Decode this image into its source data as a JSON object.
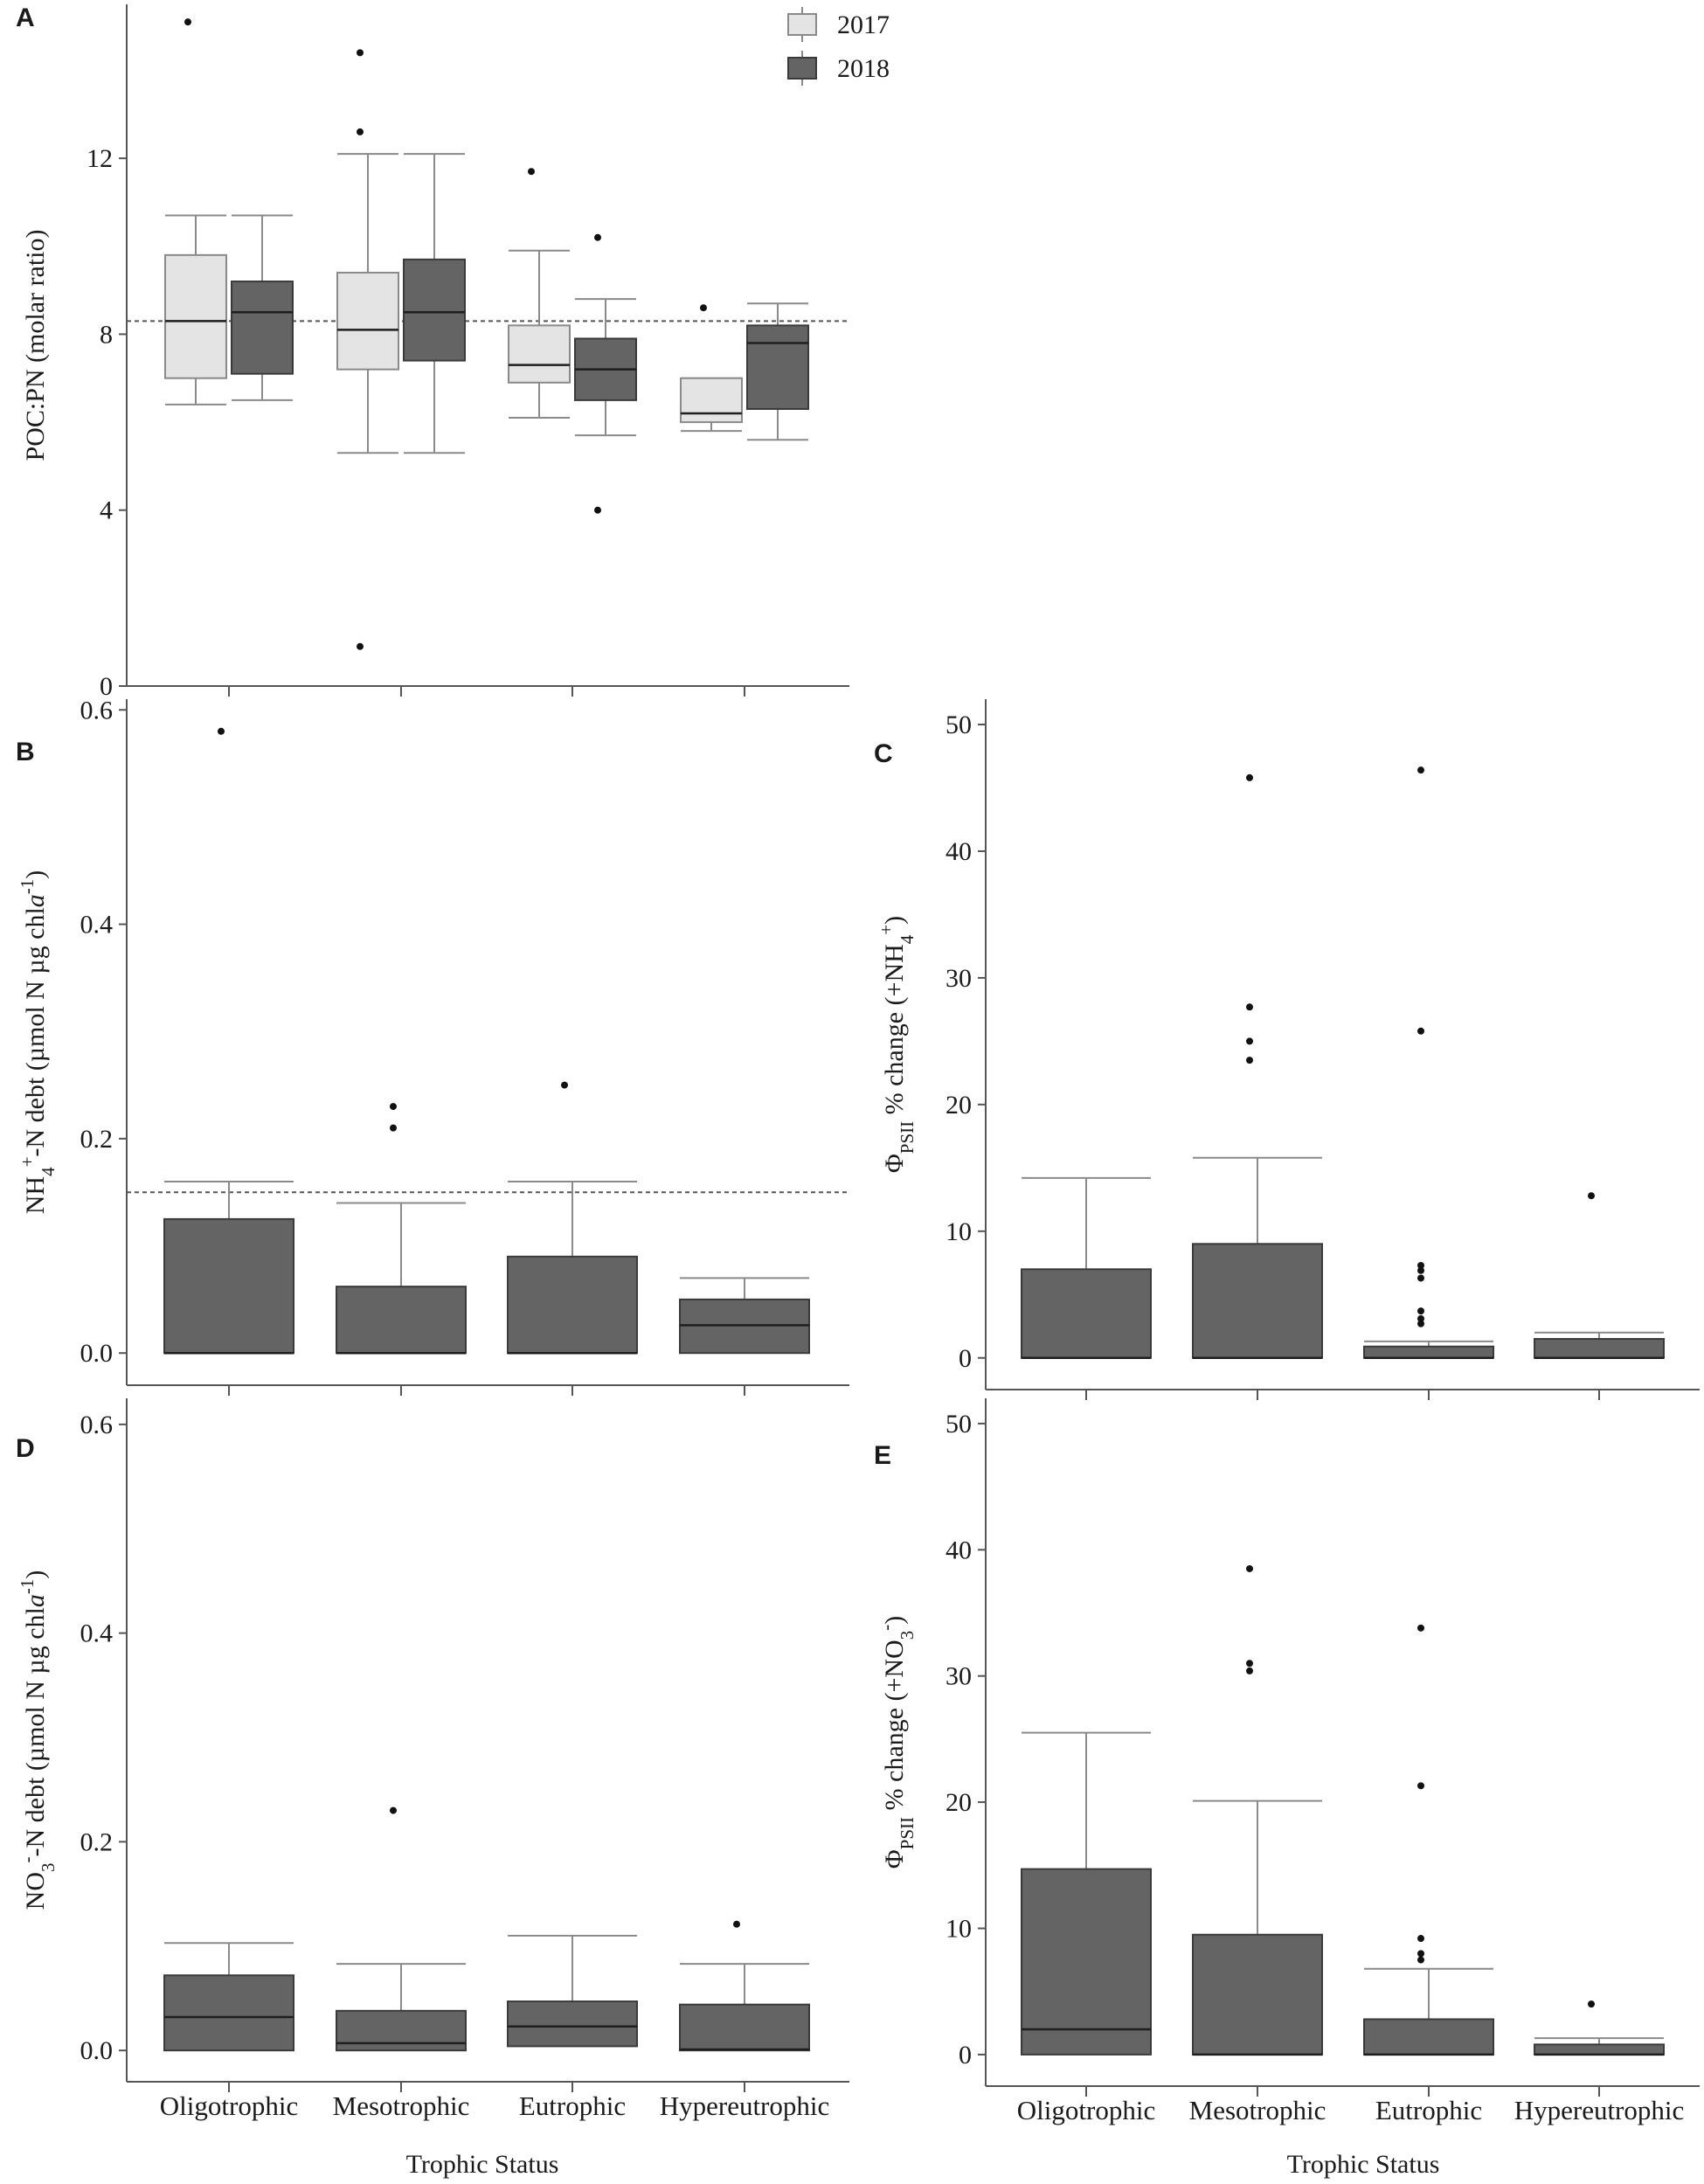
{
  "figure": {
    "shared_xlabel": "Trophic  Status",
    "categories": [
      "Oligotrophic",
      "Mesotrophic",
      "Eutrophic",
      "Hypereutrophic"
    ]
  },
  "colors": {
    "fill_2017": "#e4e4e4",
    "fill_2018": "#646464",
    "outline_2017": "#8a8a8a",
    "outline_2018": "#3a3a3a",
    "whisker": "#8a8a8a",
    "axis": "#555555",
    "reference_line": "#555555"
  },
  "chart_data": [
    {
      "panel": "A",
      "type": "box",
      "ylabel": "POC:PN (molar  ratio)",
      "ylim": [
        0,
        15.5
      ],
      "yticks": [
        0,
        4,
        8,
        12
      ],
      "reference_line": 8.3,
      "legend": {
        "placement": "top-right",
        "entries": [
          "2017",
          "2018"
        ]
      },
      "categories": [
        "Oligotrophic",
        "Mesotrophic",
        "Eutrophic",
        "Hypereutrophic"
      ],
      "show_category_labels": false,
      "series": [
        {
          "name": "2017",
          "boxes": [
            {
              "whisker_low": 6.4,
              "q1": 7.0,
              "median": 8.3,
              "q3": 9.8,
              "whisker_high": 10.7,
              "outliers": [
                15.1
              ]
            },
            {
              "whisker_low": 5.3,
              "q1": 7.2,
              "median": 8.1,
              "q3": 9.4,
              "whisker_high": 12.1,
              "outliers": [
                14.4,
                12.6,
                0.9
              ]
            },
            {
              "whisker_low": 6.1,
              "q1": 6.9,
              "median": 7.3,
              "q3": 8.2,
              "whisker_high": 9.9,
              "outliers": [
                11.7
              ]
            },
            {
              "whisker_low": 5.8,
              "q1": 6.0,
              "median": 6.2,
              "q3": 7.0,
              "whisker_high": 7.0,
              "outliers": [
                8.6
              ]
            }
          ]
        },
        {
          "name": "2018",
          "boxes": [
            {
              "whisker_low": 6.5,
              "q1": 7.1,
              "median": 8.5,
              "q3": 9.2,
              "whisker_high": 10.7,
              "outliers": []
            },
            {
              "whisker_low": 5.3,
              "q1": 7.4,
              "median": 8.5,
              "q3": 9.7,
              "whisker_high": 12.1,
              "outliers": []
            },
            {
              "whisker_low": 5.7,
              "q1": 6.5,
              "median": 7.2,
              "q3": 7.9,
              "whisker_high": 8.8,
              "outliers": [
                10.2,
                4.0
              ]
            },
            {
              "whisker_low": 5.6,
              "q1": 6.3,
              "median": 7.8,
              "q3": 8.2,
              "whisker_high": 8.7,
              "outliers": []
            }
          ]
        }
      ]
    },
    {
      "panel": "B",
      "type": "box",
      "ylabel": "NH4+-N debt (µmol N µg chl a-1)",
      "ylim": [
        -0.03,
        0.61
      ],
      "yticks": [
        0.0,
        0.2,
        0.4,
        0.6
      ],
      "ytick_labels": [
        "0.0",
        "0.2",
        "0.4",
        "0.6"
      ],
      "reference_line": 0.15,
      "categories": [
        "Oligotrophic",
        "Mesotrophic",
        "Eutrophic",
        "Hypereutrophic"
      ],
      "show_category_labels": false,
      "series": [
        {
          "name": "2018",
          "boxes": [
            {
              "whisker_low": 0.0,
              "q1": 0.0,
              "median": 0.0,
              "q3": 0.125,
              "whisker_high": 0.16,
              "outliers": [
                0.58
              ]
            },
            {
              "whisker_low": 0.0,
              "q1": 0.0,
              "median": 0.0,
              "q3": 0.062,
              "whisker_high": 0.14,
              "outliers": [
                0.23,
                0.21
              ]
            },
            {
              "whisker_low": 0.0,
              "q1": 0.0,
              "median": 0.0,
              "q3": 0.09,
              "whisker_high": 0.16,
              "outliers": [
                0.25
              ]
            },
            {
              "whisker_low": 0.0,
              "q1": 0.0,
              "median": 0.026,
              "q3": 0.05,
              "whisker_high": 0.07,
              "outliers": []
            }
          ]
        }
      ]
    },
    {
      "panel": "C",
      "type": "box",
      "ylabel": "ΦPSII % change  (+NH4+)",
      "ylim": [
        -2.5,
        52
      ],
      "yticks": [
        0,
        10,
        20,
        30,
        40,
        50
      ],
      "categories": [
        "Oligotrophic",
        "Mesotrophic",
        "Eutrophic",
        "Hypereutrophic"
      ],
      "show_category_labels": false,
      "series": [
        {
          "name": "2018",
          "boxes": [
            {
              "whisker_low": 0,
              "q1": 0,
              "median": 0,
              "q3": 7.0,
              "whisker_high": 14.2,
              "outliers": []
            },
            {
              "whisker_low": 0,
              "q1": 0,
              "median": 0,
              "q3": 9.0,
              "whisker_high": 15.8,
              "outliers": [
                45.8,
                27.7,
                25.0,
                23.5
              ]
            },
            {
              "whisker_low": 0,
              "q1": 0,
              "median": 0,
              "q3": 0.9,
              "whisker_high": 1.3,
              "outliers": [
                46.4,
                25.8,
                7.3,
                6.9,
                6.3,
                3.7,
                3.1,
                2.7
              ]
            },
            {
              "whisker_low": 0,
              "q1": 0,
              "median": 0,
              "q3": 1.5,
              "whisker_high": 2.0,
              "outliers": [
                12.8
              ]
            }
          ]
        }
      ]
    },
    {
      "panel": "D",
      "type": "box",
      "ylabel": "NO3--N debt (µmol N µg chl a-1)",
      "ylim": [
        -0.03,
        0.625
      ],
      "yticks": [
        0.0,
        0.2,
        0.4,
        0.6
      ],
      "ytick_labels": [
        "0.0",
        "0.2",
        "0.4",
        "0.6"
      ],
      "categories": [
        "Oligotrophic",
        "Mesotrophic",
        "Eutrophic",
        "Hypereutrophic"
      ],
      "show_category_labels": true,
      "series": [
        {
          "name": "2018",
          "boxes": [
            {
              "whisker_low": 0.0,
              "q1": 0.0,
              "median": 0.032,
              "q3": 0.072,
              "whisker_high": 0.103,
              "outliers": []
            },
            {
              "whisker_low": 0.0,
              "q1": 0.0,
              "median": 0.007,
              "q3": 0.038,
              "whisker_high": 0.083,
              "outliers": [
                0.23
              ]
            },
            {
              "whisker_low": 0.004,
              "q1": 0.004,
              "median": 0.023,
              "q3": 0.047,
              "whisker_high": 0.11,
              "outliers": []
            },
            {
              "whisker_low": 0.0,
              "q1": 0.0,
              "median": 0.001,
              "q3": 0.044,
              "whisker_high": 0.083,
              "outliers": [
                0.121
              ]
            }
          ]
        }
      ]
    },
    {
      "panel": "E",
      "type": "box",
      "ylabel": "ΦPSII % change  (+NO3-)",
      "ylim": [
        -2.5,
        52
      ],
      "yticks": [
        0,
        10,
        20,
        30,
        40,
        50
      ],
      "categories": [
        "Oligotrophic",
        "Mesotrophic",
        "Eutrophic",
        "Hypereutrophic"
      ],
      "show_category_labels": true,
      "series": [
        {
          "name": "2018",
          "boxes": [
            {
              "whisker_low": 0,
              "q1": 0,
              "median": 2.0,
              "q3": 14.7,
              "whisker_high": 25.5,
              "outliers": []
            },
            {
              "whisker_low": 0,
              "q1": 0,
              "median": 0,
              "q3": 9.5,
              "whisker_high": 20.1,
              "outliers": [
                38.5,
                31.0,
                30.4
              ]
            },
            {
              "whisker_low": 0,
              "q1": 0,
              "median": 0,
              "q3": 2.8,
              "whisker_high": 6.8,
              "outliers": [
                33.8,
                21.3,
                9.2,
                8.0,
                7.5
              ]
            },
            {
              "whisker_low": 0,
              "q1": 0,
              "median": 0,
              "q3": 0.8,
              "whisker_high": 1.3,
              "outliers": [
                4.0
              ]
            }
          ]
        }
      ]
    }
  ]
}
